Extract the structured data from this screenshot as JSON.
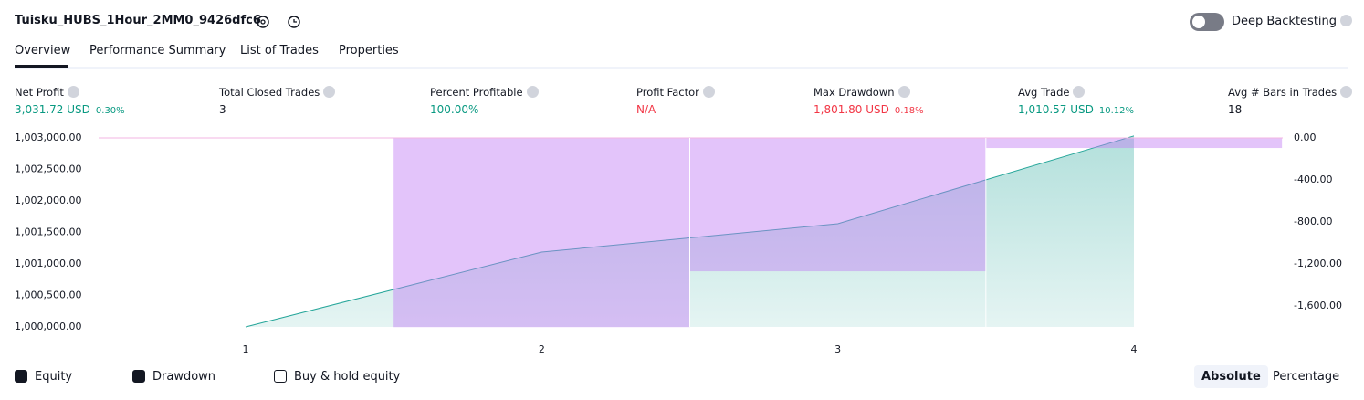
{
  "header": {
    "title": "Tuisku_HUBS_1Hour_2MM0_9426dfc6",
    "toggle_label": "Deep Backtesting"
  },
  "tabs": [
    "Overview",
    "Performance Summary",
    "List of Trades",
    "Properties"
  ],
  "metrics": [
    {
      "label": "Net Profit",
      "value": "3,031.72 USD",
      "extra": "0.30%",
      "color": "#089981"
    },
    {
      "label": "Total Closed Trades",
      "value": "3",
      "color": "#131722"
    },
    {
      "label": "Percent Profitable",
      "value": "100.00%",
      "color": "#089981"
    },
    {
      "label": "Profit Factor",
      "value": "N/A",
      "color": "#f23645"
    },
    {
      "label": "Max Drawdown",
      "value": "1,801.80 USD",
      "extra": "0.18%",
      "color": "#f23645"
    },
    {
      "label": "Avg Trade",
      "value": "1,010.57 USD",
      "extra": "10.12%",
      "color": "#089981"
    },
    {
      "label": "Avg # Bars in Trades",
      "value": "18",
      "color": "#131722"
    }
  ],
  "chart_data": {
    "type": "line",
    "categories": [
      "1",
      "2",
      "3",
      "4"
    ],
    "series": [
      {
        "name": "Equity",
        "color": "#26a69a",
        "values": [
          1000000,
          1001188,
          1001638,
          1003031.72
        ]
      },
      {
        "name": "Drawdown",
        "color": "#c07cf4",
        "axis": "y2",
        "values": [
          null,
          -1801.8,
          -1270,
          -96
        ]
      }
    ],
    "ylim": [
      1000000,
      1003000
    ],
    "yticks": [
      {
        "value": 1000000,
        "label": "1,000,000.00"
      },
      {
        "value": 1000500,
        "label": "1,000,500.00"
      },
      {
        "value": 1001000,
        "label": "1,001,000.00"
      },
      {
        "value": 1001500,
        "label": "1,001,500.00"
      },
      {
        "value": 1002000,
        "label": "1,002,000.00"
      },
      {
        "value": 1002500,
        "label": "1,002,500.00"
      },
      {
        "value": 1003000,
        "label": "1,003,000.00"
      }
    ],
    "y2lim": [
      -1800,
      0
    ],
    "y2ticks": [
      {
        "value": 0,
        "label": "0.00"
      },
      {
        "value": -400,
        "label": "-400.00"
      },
      {
        "value": -800,
        "label": "-800.00"
      },
      {
        "value": -1200,
        "label": "-1,200.00"
      },
      {
        "value": -1600,
        "label": "-1,600.00"
      }
    ],
    "extra_legend": "Buy & hold equity",
    "modes": [
      "Absolute",
      "Percentage"
    ]
  }
}
